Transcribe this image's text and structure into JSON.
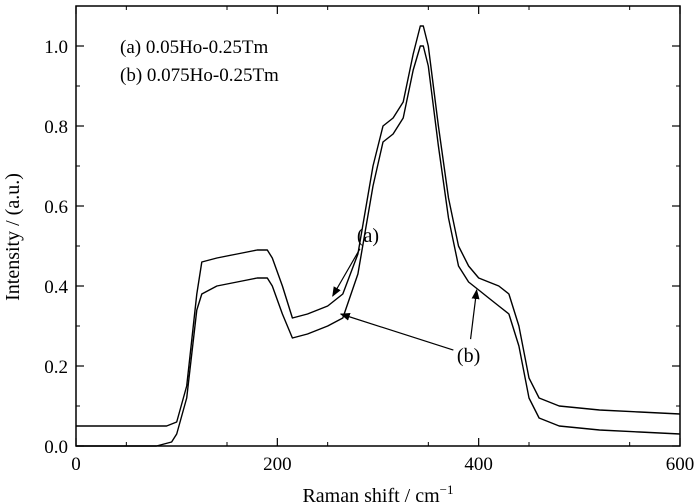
{
  "chart_data": {
    "type": "line",
    "xlabel": "Raman shift / cm",
    "xlabel_sup": "−1",
    "ylabel": "Intensity / (a.u.)",
    "xlim": [
      0,
      600
    ],
    "ylim": [
      0,
      1.1
    ],
    "xticks": [
      0,
      200,
      400,
      600
    ],
    "xtick_labels": [
      "0",
      "200",
      "400",
      "600"
    ],
    "yticks": [
      0.0,
      0.2,
      0.4,
      0.6,
      0.8,
      1.0
    ],
    "ytick_labels": [
      "0.0",
      "0.2",
      "0.4",
      "0.6",
      "0.8",
      "1.0"
    ],
    "grid": false,
    "legend_position": "top-left",
    "legend": [
      "(a) 0.05Ho-0.25Tm",
      "(b) 0.075Ho-0.25Tm"
    ],
    "series": [
      {
        "name": "(a) 0.05Ho-0.25Tm",
        "x": [
          0,
          60,
          90,
          100,
          110,
          120,
          125,
          140,
          160,
          180,
          190,
          195,
          205,
          215,
          230,
          250,
          265,
          280,
          295,
          305,
          315,
          325,
          335,
          342,
          345,
          350,
          360,
          370,
          380,
          390,
          400,
          410,
          420,
          430,
          440,
          450,
          460,
          480,
          520,
          560,
          600
        ],
        "y": [
          0.05,
          0.05,
          0.05,
          0.06,
          0.15,
          0.38,
          0.46,
          0.47,
          0.48,
          0.49,
          0.49,
          0.47,
          0.4,
          0.32,
          0.33,
          0.35,
          0.38,
          0.48,
          0.7,
          0.8,
          0.82,
          0.86,
          0.98,
          1.05,
          1.05,
          1.0,
          0.8,
          0.62,
          0.5,
          0.45,
          0.42,
          0.41,
          0.4,
          0.38,
          0.3,
          0.17,
          0.12,
          0.1,
          0.09,
          0.085,
          0.08
        ]
      },
      {
        "name": "(b) 0.075Ho-0.25Tm",
        "x": [
          0,
          80,
          95,
          100,
          110,
          120,
          125,
          140,
          160,
          180,
          190,
          195,
          205,
          215,
          230,
          250,
          265,
          280,
          295,
          305,
          315,
          325,
          335,
          342,
          345,
          350,
          360,
          370,
          380,
          390,
          400,
          410,
          420,
          430,
          440,
          450,
          460,
          480,
          520,
          560,
          600
        ],
        "y": [
          0.0,
          0.0,
          0.01,
          0.03,
          0.12,
          0.34,
          0.38,
          0.4,
          0.41,
          0.42,
          0.42,
          0.4,
          0.33,
          0.27,
          0.28,
          0.3,
          0.32,
          0.43,
          0.65,
          0.76,
          0.78,
          0.82,
          0.94,
          1.0,
          1.0,
          0.95,
          0.75,
          0.57,
          0.45,
          0.41,
          0.39,
          0.37,
          0.35,
          0.33,
          0.25,
          0.12,
          0.07,
          0.05,
          0.04,
          0.035,
          0.03
        ]
      }
    ],
    "annotations": [
      {
        "label": "(a)",
        "text_at": [
          290,
          0.51
        ],
        "arrows_to": [
          [
            255,
            0.375
          ]
        ]
      },
      {
        "label": "(b)",
        "text_at": [
          390,
          0.21
        ],
        "arrows_to": [
          [
            263,
            0.33
          ],
          [
            398,
            0.39
          ]
        ]
      }
    ]
  }
}
